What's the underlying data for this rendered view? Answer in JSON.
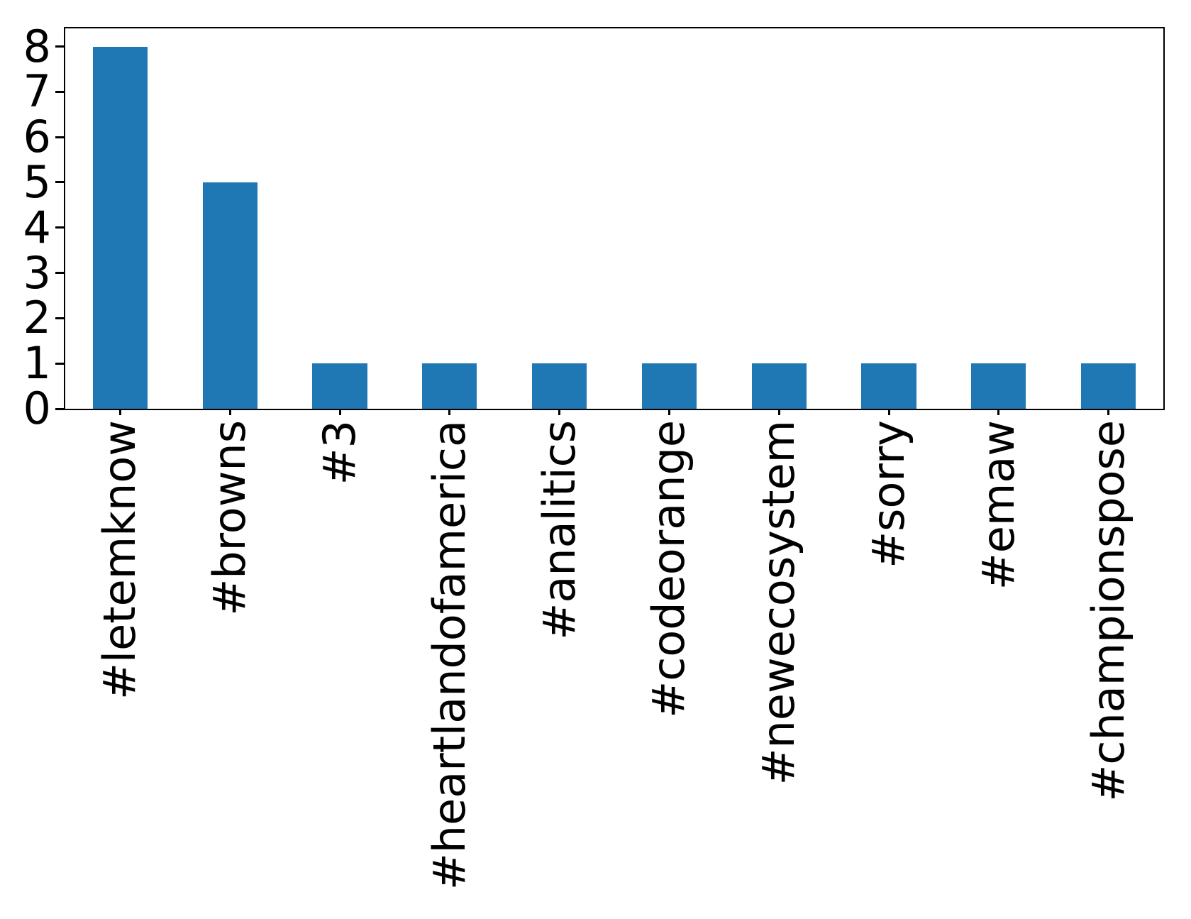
{
  "chart_data": {
    "type": "bar",
    "title": "",
    "xlabel": "",
    "ylabel": "",
    "categories": [
      "#letemknow",
      "#browns",
      "#3",
      "#heartlandofamerica",
      "#analitics",
      "#codeorange",
      "#newecosystem",
      "#sorry",
      "#emaw",
      "#championspose"
    ],
    "values": [
      8,
      5,
      1,
      1,
      1,
      1,
      1,
      1,
      1,
      1
    ],
    "yticks": [
      0,
      1,
      2,
      3,
      4,
      5,
      6,
      7,
      8
    ],
    "ylim": [
      0,
      8.4
    ],
    "x_tick_rotation": 90,
    "bar_width_fraction": 0.5,
    "grid": false,
    "legend": null,
    "colors": {
      "bar": "#1f77b4",
      "axis": "#000000",
      "text": "#000000",
      "background": "#ffffff"
    }
  }
}
